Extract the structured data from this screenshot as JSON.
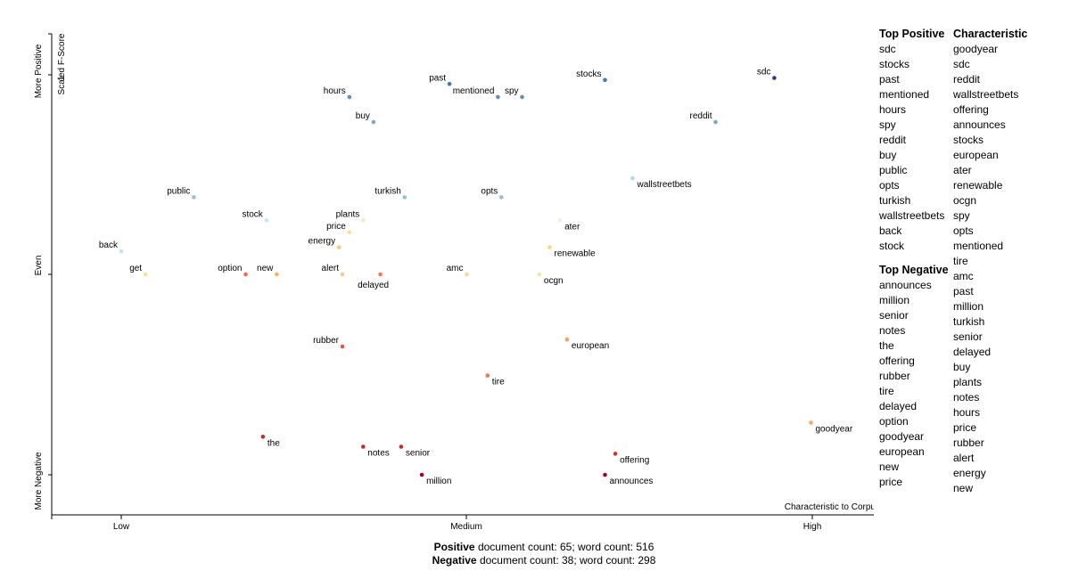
{
  "chart_data": {
    "type": "scatter",
    "x_axis": {
      "title": "Characteristic to Corpus",
      "ticks": [
        "Low",
        "Medium",
        "High"
      ]
    },
    "y_axis": {
      "title": "Scaled F-Score",
      "top_label": "More Positive",
      "mid_label": "Even",
      "bottom_label": "More Negative",
      "top_tick": "1"
    },
    "points": [
      {
        "term": "sdc",
        "x": 0.945,
        "y": 0.98,
        "color": "#313695"
      },
      {
        "term": "stocks",
        "x": 0.7,
        "y": 0.97,
        "color": "#4575b4"
      },
      {
        "term": "past",
        "x": 0.475,
        "y": 0.95,
        "color": "#4575b4"
      },
      {
        "term": "mentioned",
        "x": 0.545,
        "y": 0.885,
        "color": "#5a8ec4"
      },
      {
        "term": "spy",
        "x": 0.58,
        "y": 0.885,
        "color": "#5a8ec4"
      },
      {
        "term": "hours",
        "x": 0.33,
        "y": 0.885,
        "color": "#5a8ec4"
      },
      {
        "term": "buy",
        "x": 0.365,
        "y": 0.76,
        "color": "#74a9cf"
      },
      {
        "term": "reddit",
        "x": 0.86,
        "y": 0.76,
        "color": "#74a9cf"
      },
      {
        "term": "wallstreetbets",
        "x": 0.74,
        "y": 0.48,
        "color": "#abd9e9"
      },
      {
        "term": "public",
        "x": 0.105,
        "y": 0.385,
        "color": "#8fc1dd"
      },
      {
        "term": "turkish",
        "x": 0.41,
        "y": 0.385,
        "color": "#8fc1dd"
      },
      {
        "term": "opts",
        "x": 0.55,
        "y": 0.385,
        "color": "#8fc1dd"
      },
      {
        "term": "stock",
        "x": 0.21,
        "y": 0.27,
        "color": "#c6e7ef"
      },
      {
        "term": "plants",
        "x": 0.35,
        "y": 0.27,
        "color": "#e0f3c9"
      },
      {
        "term": "ater",
        "x": 0.635,
        "y": 0.27,
        "color": "#e7f5d8"
      },
      {
        "term": "price",
        "x": 0.33,
        "y": 0.21,
        "color": "#fee090"
      },
      {
        "term": "energy",
        "x": 0.315,
        "y": 0.135,
        "color": "#fdc87a"
      },
      {
        "term": "renewable",
        "x": 0.62,
        "y": 0.135,
        "color": "#fdd680"
      },
      {
        "term": "back",
        "x": 0.0,
        "y": 0.115,
        "color": "#c6e1f2"
      },
      {
        "term": "get",
        "x": 0.035,
        "y": 0.0,
        "color": "#fee090"
      },
      {
        "term": "option",
        "x": 0.18,
        "y": 0.0,
        "color": "#f46d43"
      },
      {
        "term": "new",
        "x": 0.225,
        "y": 0.0,
        "color": "#fdae61"
      },
      {
        "term": "alert",
        "x": 0.32,
        "y": 0.0,
        "color": "#fdc882"
      },
      {
        "term": "delayed",
        "x": 0.375,
        "y": 0.0,
        "color": "#f47a4a"
      },
      {
        "term": "amc",
        "x": 0.5,
        "y": 0.0,
        "color": "#fed58a"
      },
      {
        "term": "ocgn",
        "x": 0.605,
        "y": 0.0,
        "color": "#fee3a0"
      },
      {
        "term": "rubber",
        "x": 0.32,
        "y": -0.36,
        "color": "#e8553a"
      },
      {
        "term": "european",
        "x": 0.645,
        "y": -0.325,
        "color": "#f99d59"
      },
      {
        "term": "tire",
        "x": 0.53,
        "y": -0.505,
        "color": "#f0774a"
      },
      {
        "term": "goodyear",
        "x": 0.998,
        "y": -0.74,
        "color": "#fca563"
      },
      {
        "term": "the",
        "x": 0.205,
        "y": -0.81,
        "color": "#c8282a"
      },
      {
        "term": "notes",
        "x": 0.35,
        "y": -0.86,
        "color": "#c8282a"
      },
      {
        "term": "senior",
        "x": 0.405,
        "y": -0.86,
        "color": "#c8282a"
      },
      {
        "term": "offering",
        "x": 0.715,
        "y": -0.895,
        "color": "#d73027"
      },
      {
        "term": "million",
        "x": 0.435,
        "y": -1.0,
        "color": "#a50026"
      },
      {
        "term": "announces",
        "x": 0.7,
        "y": -1.0,
        "color": "#a50026"
      }
    ]
  },
  "lists": {
    "top_positive_title": "Top Positive",
    "top_positive": [
      "sdc",
      "stocks",
      "past",
      "mentioned",
      "hours",
      "spy",
      "reddit",
      "buy",
      "public",
      "opts",
      "turkish",
      "wallstreetbets",
      "back",
      "stock"
    ],
    "top_negative_title": "Top Negative",
    "top_negative": [
      "announces",
      "million",
      "senior",
      "notes",
      "the",
      "offering",
      "rubber",
      "tire",
      "delayed",
      "option",
      "goodyear",
      "european",
      "new",
      "price"
    ],
    "characteristic_title": "Characteristic",
    "characteristic": [
      "goodyear",
      "sdc",
      "reddit",
      "wallstreetbets",
      "offering",
      "announces",
      "stocks",
      "european",
      "ater",
      "renewable",
      "ocgn",
      "spy",
      "opts",
      "mentioned",
      "tire",
      "amc",
      "past",
      "million",
      "turkish",
      "senior",
      "delayed",
      "buy",
      "plants",
      "notes",
      "hours",
      "price",
      "rubber",
      "alert",
      "energy",
      "new"
    ]
  },
  "footer": {
    "positive_label": "Positive",
    "positive_text": " document count: 65; word count: 516",
    "negative_label": "Negative",
    "negative_text": " document count: 38; word count: 298"
  }
}
